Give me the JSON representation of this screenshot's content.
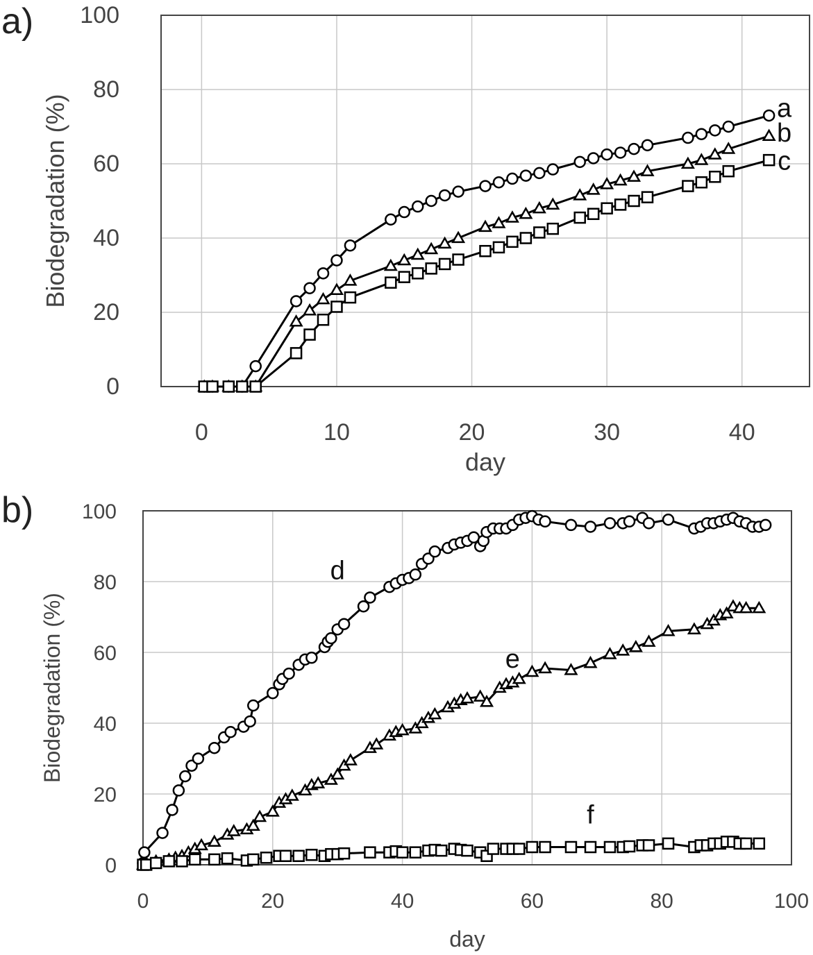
{
  "chart_data": [
    {
      "type": "line",
      "panel_label": "a)",
      "xlabel": "day",
      "ylabel": "Biodegradation (%)",
      "xlim": [
        -3,
        45
      ],
      "ylim": [
        0,
        100
      ],
      "xticks": [
        0,
        10,
        20,
        30,
        40
      ],
      "yticks": [
        0,
        20,
        40,
        60,
        80,
        100
      ],
      "grid": true,
      "series": [
        {
          "name": "a",
          "marker": "circle",
          "x": [
            0.2,
            0.8,
            2,
            3,
            4,
            7,
            8,
            9,
            10,
            11,
            14,
            15,
            16,
            17,
            18,
            19,
            21,
            22,
            23,
            24,
            25,
            26,
            28,
            29,
            30,
            31,
            32,
            33,
            36,
            37,
            38,
            39,
            42
          ],
          "y": [
            0,
            0,
            0,
            0,
            5.5,
            23,
            26.5,
            30.5,
            34,
            38,
            45,
            47,
            48.5,
            50,
            51.5,
            52.5,
            54,
            55,
            56,
            56.8,
            57.5,
            58.5,
            60.5,
            61.5,
            62.5,
            63,
            64,
            65,
            67,
            68,
            69,
            70,
            73
          ]
        },
        {
          "name": "b",
          "marker": "triangle",
          "x": [
            0.2,
            0.8,
            2,
            3,
            4,
            7,
            8,
            9,
            10,
            11,
            14,
            15,
            16,
            17,
            18,
            19,
            21,
            22,
            23,
            24,
            25,
            26,
            28,
            29,
            30,
            31,
            32,
            33,
            36,
            37,
            38,
            39,
            42
          ],
          "y": [
            0,
            0,
            0,
            0,
            0,
            17.5,
            20.5,
            23.5,
            26,
            28.5,
            32.5,
            34,
            35.5,
            37,
            38.5,
            40,
            43,
            44,
            45.5,
            46.5,
            48,
            49,
            51.5,
            53,
            54.5,
            55.5,
            56.5,
            58,
            60,
            61,
            62.5,
            64,
            67.5
          ]
        },
        {
          "name": "c",
          "marker": "square",
          "x": [
            0.2,
            0.8,
            2,
            3,
            4,
            7,
            8,
            9,
            10,
            11,
            14,
            15,
            16,
            17,
            18,
            19,
            21,
            22,
            23,
            24,
            25,
            26,
            28,
            29,
            30,
            31,
            32,
            33,
            36,
            37,
            38,
            39,
            42
          ],
          "y": [
            0,
            0,
            0,
            0,
            0,
            9,
            14,
            18,
            21.5,
            24,
            28,
            29.5,
            30.5,
            31.8,
            33,
            34.2,
            36.5,
            37.5,
            39,
            40,
            41.5,
            42.5,
            45.5,
            46.5,
            48,
            49,
            50,
            51,
            54,
            55,
            56.5,
            58,
            61
          ]
        }
      ]
    },
    {
      "type": "line",
      "panel_label": "b)",
      "xlabel": "day",
      "ylabel": "Biodegradation (%)",
      "xlim": [
        0,
        100
      ],
      "ylim": [
        0,
        100
      ],
      "xticks": [
        0,
        20,
        40,
        60,
        80,
        100
      ],
      "yticks": [
        0,
        20,
        40,
        60,
        80,
        100
      ],
      "grid": true,
      "series": [
        {
          "name": "d",
          "marker": "circle",
          "x": [
            0,
            0.2,
            3,
            4.5,
            5.5,
            6.5,
            7.5,
            8.5,
            11,
            12.5,
            13.5,
            15.5,
            16.5,
            17,
            20,
            21,
            21.5,
            22.5,
            24,
            25,
            26,
            28,
            28.5,
            29,
            30,
            31,
            34,
            35,
            38,
            39,
            40,
            41,
            42,
            43,
            44,
            45,
            47,
            48,
            49,
            50,
            51,
            52,
            52.5,
            53,
            54,
            55,
            56,
            57,
            58,
            59,
            60,
            61,
            62,
            66,
            69,
            72,
            74,
            75,
            77,
            78,
            81,
            85,
            86,
            87,
            88,
            89,
            90,
            91,
            92,
            93,
            94,
            95,
            96
          ],
          "y": [
            0.5,
            3.5,
            9,
            15.5,
            21,
            25,
            28,
            30,
            33,
            36,
            37.5,
            39,
            40.5,
            45,
            48.5,
            51,
            52.5,
            54,
            56.5,
            58,
            58.5,
            61.5,
            63,
            64,
            66.5,
            68,
            73,
            75.5,
            78.5,
            79.5,
            80.5,
            81,
            82,
            85,
            86.5,
            88.5,
            89.5,
            90.5,
            91,
            91.5,
            92.5,
            90,
            91.5,
            94,
            95,
            95,
            95,
            96,
            97.5,
            98,
            98.5,
            97.5,
            97,
            96,
            95.5,
            96.5,
            96.5,
            97,
            98,
            96.5,
            97.5,
            95,
            95.5,
            96.5,
            96.5,
            97,
            97.5,
            98,
            97,
            96.5,
            95.5,
            95.5,
            96
          ]
        },
        {
          "name": "e",
          "marker": "triangle",
          "x": [
            0,
            0.5,
            2,
            4,
            5,
            6,
            7,
            8,
            9,
            11,
            13,
            14,
            16,
            17,
            18,
            20,
            21,
            22,
            23,
            25,
            26,
            27,
            29,
            30,
            31,
            32,
            35,
            36,
            38,
            39,
            40,
            42,
            43,
            44,
            45,
            47,
            48,
            49,
            50,
            52,
            53,
            55,
            56,
            57,
            58,
            60,
            62,
            66,
            69,
            72,
            74,
            76,
            78,
            81,
            85,
            87,
            88,
            89,
            90,
            91,
            92,
            93,
            95
          ],
          "y": [
            0,
            0.5,
            1,
            1.5,
            2,
            2.5,
            3.5,
            4.5,
            5.5,
            6.5,
            8.5,
            9.5,
            10,
            11,
            13.5,
            15,
            17.5,
            18.5,
            19.5,
            21,
            22.5,
            23,
            24,
            25.5,
            28,
            29.5,
            33,
            34,
            36.5,
            37.5,
            38,
            38.5,
            40,
            41.5,
            42.5,
            44.5,
            45.5,
            46.5,
            47,
            47.5,
            46,
            50,
            51,
            51.5,
            52.5,
            54.5,
            55.5,
            55,
            57,
            59.5,
            60.5,
            61.5,
            63,
            66,
            66.5,
            68,
            69,
            70.5,
            71,
            73,
            72.5,
            72.5,
            72.5
          ]
        },
        {
          "name": "f",
          "marker": "square",
          "x": [
            0,
            0.5,
            2,
            4,
            6,
            8,
            11,
            13,
            16,
            17,
            19,
            21,
            22,
            24,
            26,
            28,
            29,
            30,
            31,
            35,
            38,
            39,
            40,
            42,
            44,
            45,
            46,
            48,
            49,
            50,
            52,
            53,
            54,
            56,
            57,
            58,
            60,
            62,
            66,
            69,
            72,
            74,
            75,
            77,
            78,
            81,
            85,
            86,
            87,
            88,
            89,
            90,
            91,
            92,
            93,
            95
          ],
          "y": [
            0,
            0,
            0.5,
            1,
            1,
            1.5,
            1.5,
            1.8,
            1.2,
            1.5,
            2,
            2.5,
            2.5,
            2.5,
            2.8,
            2.5,
            3,
            3,
            3.2,
            3.5,
            3.5,
            3.8,
            3.5,
            3.5,
            4,
            4.2,
            4,
            4.5,
            4.2,
            4,
            3.5,
            2.5,
            4.5,
            4.5,
            4.5,
            4.5,
            5,
            5,
            5,
            5,
            5,
            5,
            5.2,
            5.5,
            5.5,
            6,
            5,
            5.5,
            5.5,
            6,
            6,
            6.5,
            6.5,
            6,
            6,
            6
          ]
        }
      ]
    }
  ]
}
